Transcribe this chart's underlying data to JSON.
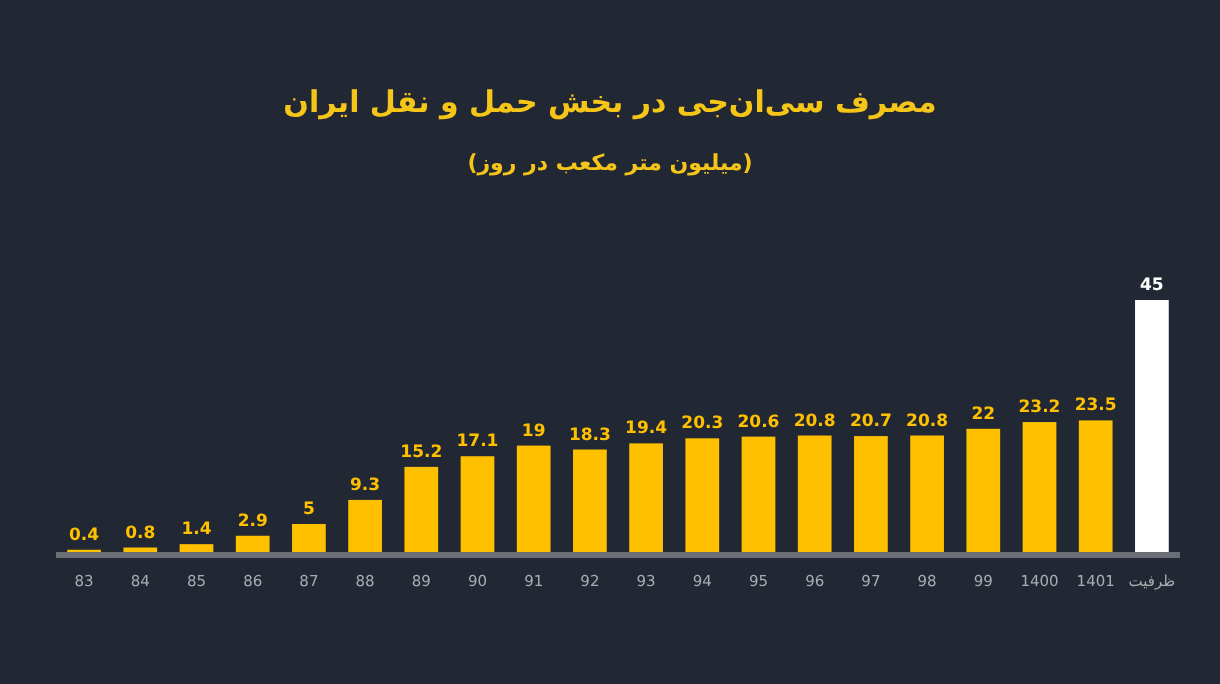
{
  "chart_data": {
    "type": "bar",
    "title": "مصرف سی‌ان‌جی در بخش حمل و نقل ایران",
    "subtitle": "(میلیون متر مکعب در روز)",
    "categories": [
      "83",
      "84",
      "85",
      "86",
      "87",
      "88",
      "89",
      "90",
      "91",
      "92",
      "93",
      "94",
      "95",
      "96",
      "97",
      "98",
      "99",
      "1400",
      "1401",
      "ظرفیت"
    ],
    "values": [
      0.4,
      0.8,
      1.4,
      2.9,
      5,
      9.3,
      15.2,
      17.1,
      19,
      18.3,
      19.4,
      20.3,
      20.6,
      20.8,
      20.7,
      20.8,
      22,
      23.2,
      23.5,
      45
    ],
    "colors": [
      "#ffc000",
      "#ffc000",
      "#ffc000",
      "#ffc000",
      "#ffc000",
      "#ffc000",
      "#ffc000",
      "#ffc000",
      "#ffc000",
      "#ffc000",
      "#ffc000",
      "#ffc000",
      "#ffc000",
      "#ffc000",
      "#ffc000",
      "#ffc000",
      "#ffc000",
      "#ffc000",
      "#ffc000",
      "#ffffff"
    ],
    "data_labels": true
  }
}
